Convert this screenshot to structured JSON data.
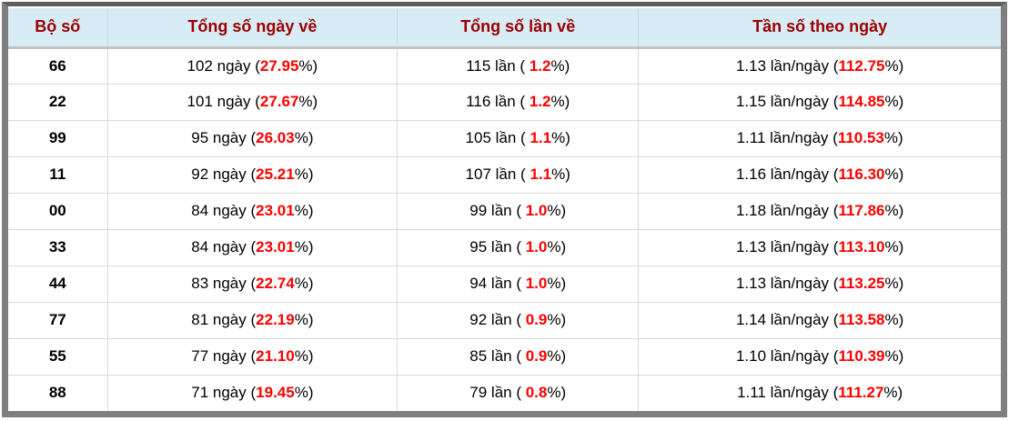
{
  "colors": {
    "accent_red": "#ff0000",
    "header_text": "#9b0000",
    "header_bg": "#d8ecf6",
    "frame_gray": "#7f7f7f",
    "divider_gray": "#d9d9d9"
  },
  "table": {
    "headers": [
      "Bộ số",
      "Tổng số ngày về",
      "Tổng số lần về",
      "Tần số theo ngày"
    ],
    "rows": [
      {
        "pair": "66",
        "days_prefix": "102 ngày (",
        "days_pct": "27.95",
        "days_suffix": "%)",
        "times_prefix": "115 lần ( ",
        "times_pct": "1.2",
        "times_suffix": "%)",
        "freq_prefix": "1.13 lần/ngày (",
        "freq_pct": "112.75",
        "freq_suffix": "%)"
      },
      {
        "pair": "22",
        "days_prefix": "101 ngày (",
        "days_pct": "27.67",
        "days_suffix": "%)",
        "times_prefix": "116 lần ( ",
        "times_pct": "1.2",
        "times_suffix": "%)",
        "freq_prefix": "1.15 lần/ngày (",
        "freq_pct": "114.85",
        "freq_suffix": "%)"
      },
      {
        "pair": "99",
        "days_prefix": "95 ngày (",
        "days_pct": "26.03",
        "days_suffix": "%)",
        "times_prefix": "105 lần ( ",
        "times_pct": "1.1",
        "times_suffix": "%)",
        "freq_prefix": "1.11 lần/ngày (",
        "freq_pct": "110.53",
        "freq_suffix": "%)"
      },
      {
        "pair": "11",
        "days_prefix": "92 ngày (",
        "days_pct": "25.21",
        "days_suffix": "%)",
        "times_prefix": "107 lần ( ",
        "times_pct": "1.1",
        "times_suffix": "%)",
        "freq_prefix": "1.16 lần/ngày (",
        "freq_pct": "116.30",
        "freq_suffix": "%)"
      },
      {
        "pair": "00",
        "days_prefix": "84 ngày (",
        "days_pct": "23.01",
        "days_suffix": "%)",
        "times_prefix": "99 lần ( ",
        "times_pct": "1.0",
        "times_suffix": "%)",
        "freq_prefix": "1.18 lần/ngày (",
        "freq_pct": "117.86",
        "freq_suffix": "%)"
      },
      {
        "pair": "33",
        "days_prefix": "84 ngày (",
        "days_pct": "23.01",
        "days_suffix": "%)",
        "times_prefix": "95 lần ( ",
        "times_pct": "1.0",
        "times_suffix": "%)",
        "freq_prefix": "1.13 lần/ngày (",
        "freq_pct": "113.10",
        "freq_suffix": "%)"
      },
      {
        "pair": "44",
        "days_prefix": "83 ngày (",
        "days_pct": "22.74",
        "days_suffix": "%)",
        "times_prefix": "94 lần ( ",
        "times_pct": "1.0",
        "times_suffix": "%)",
        "freq_prefix": "1.13 lần/ngày (",
        "freq_pct": "113.25",
        "freq_suffix": "%)"
      },
      {
        "pair": "77",
        "days_prefix": "81 ngày (",
        "days_pct": "22.19",
        "days_suffix": "%)",
        "times_prefix": "92 lần ( ",
        "times_pct": "0.9",
        "times_suffix": "%)",
        "freq_prefix": "1.14 lần/ngày (",
        "freq_pct": "113.58",
        "freq_suffix": "%)"
      },
      {
        "pair": "55",
        "days_prefix": "77 ngày (",
        "days_pct": "21.10",
        "days_suffix": "%)",
        "times_prefix": "85 lần ( ",
        "times_pct": "0.9",
        "times_suffix": "%)",
        "freq_prefix": "1.10 lần/ngày (",
        "freq_pct": "110.39",
        "freq_suffix": "%)"
      },
      {
        "pair": "88",
        "days_prefix": "71 ngày (",
        "days_pct": "19.45",
        "days_suffix": "%)",
        "times_prefix": "79 lần ( ",
        "times_pct": "0.8",
        "times_suffix": "%)",
        "freq_prefix": "1.11 lần/ngày (",
        "freq_pct": "111.27",
        "freq_suffix": "%)"
      }
    ]
  }
}
